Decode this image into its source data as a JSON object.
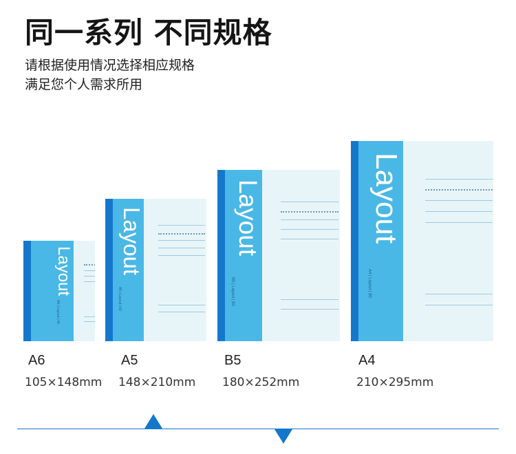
{
  "headline": "同一系列 不同规格",
  "subtitle_lines": [
    "请根据使用情况选择相应规格",
    "满足您个人需求所用"
  ],
  "colors": {
    "spine": "#1577cc",
    "cover": "#4ab8e6",
    "page": "#e8f5f8",
    "accent": "#1577cc"
  },
  "books": [
    {
      "brand": "Layout",
      "meta": "A6 | Layout | 40",
      "size": "A6",
      "dimensions": "105×148mm"
    },
    {
      "brand": "Layout",
      "meta": "A5 | Layout | 60",
      "size": "A5",
      "dimensions": "148×210mm"
    },
    {
      "brand": "Layout",
      "meta": "B5 | Layout | 80",
      "size": "B5",
      "dimensions": "180×252mm"
    },
    {
      "brand": "Layout",
      "meta": "A4 | Layout | 80",
      "size": "A4",
      "dimensions": "210×295mm"
    }
  ],
  "footer": {
    "up_marker": "triangle-up-icon",
    "down_marker": "triangle-down-icon"
  }
}
